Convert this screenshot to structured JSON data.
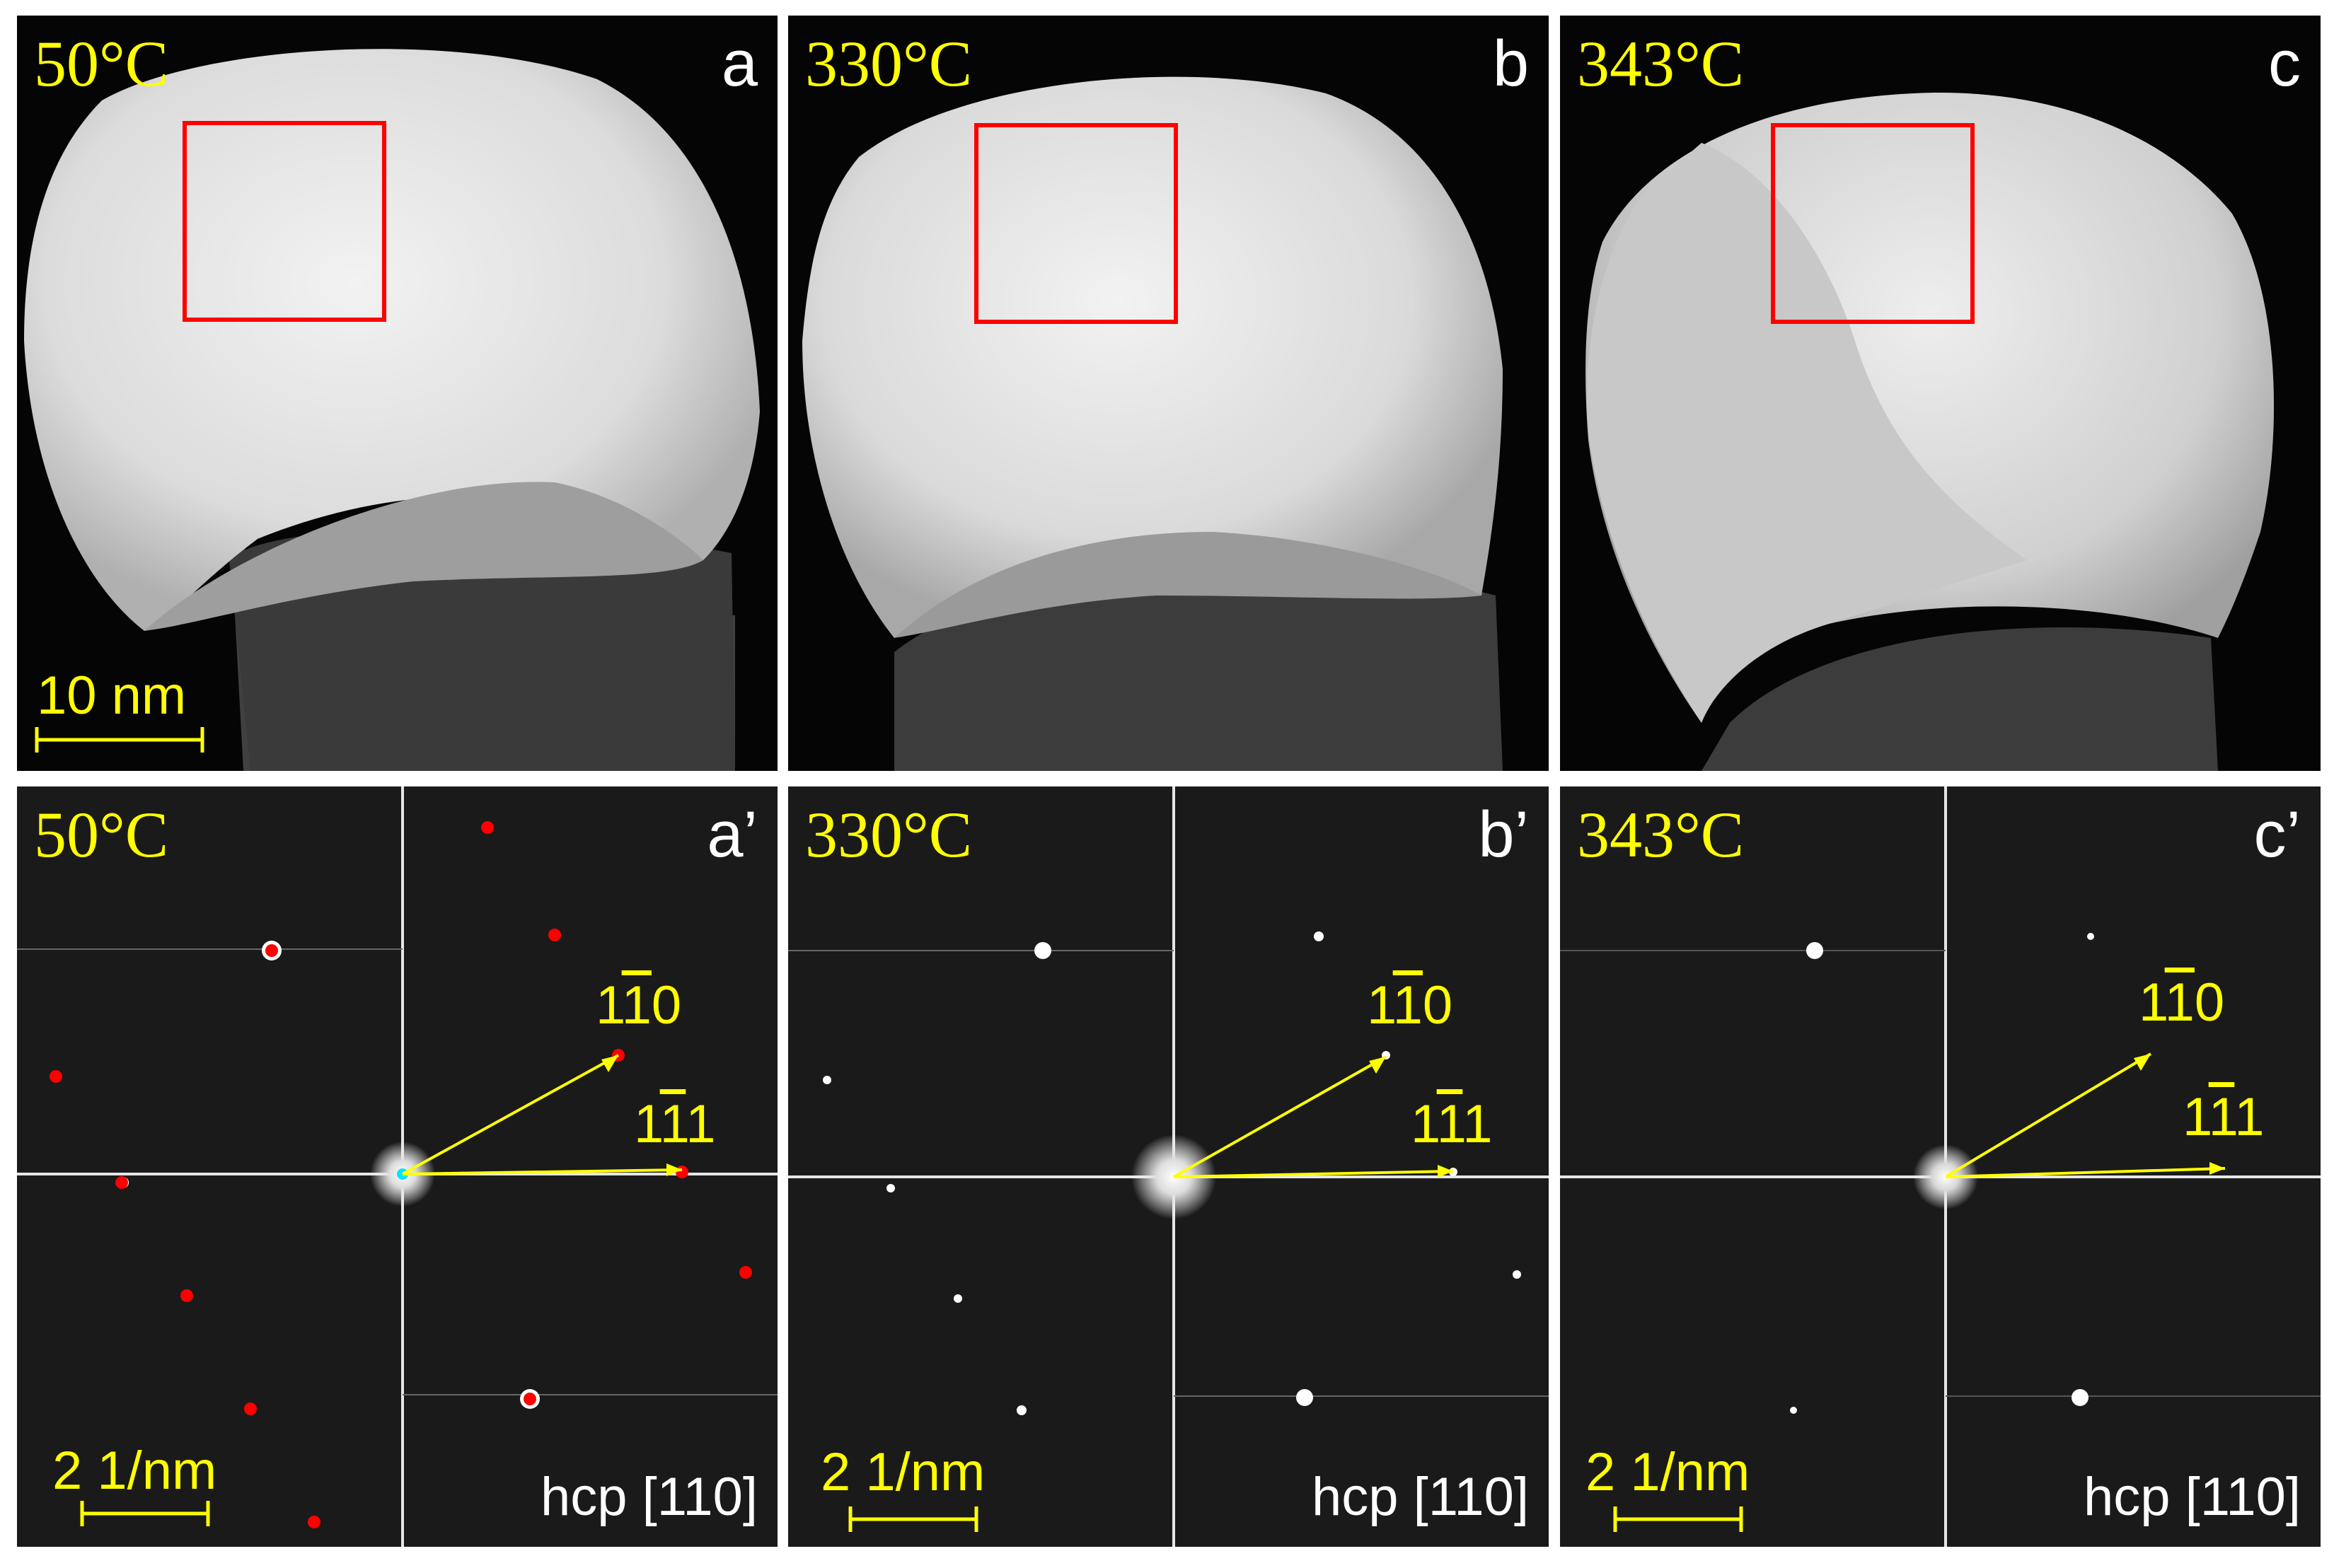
{
  "figure": {
    "top_row": [
      {
        "letter": "a",
        "temperature": "50°C",
        "scale_bar": "10 nm"
      },
      {
        "letter": "b",
        "temperature": "330°C"
      },
      {
        "letter": "c",
        "temperature": "343°C"
      }
    ],
    "bottom_row": [
      {
        "letter": "a’",
        "temperature": "50°C",
        "scale_bar": "2 1/nm",
        "zone_axis": "hcp [110]",
        "spot1": {
          "pre": "1",
          "bar": "1",
          "post": "0"
        },
        "spot2": {
          "pre": "1",
          "bar": "1",
          "post": "1"
        }
      },
      {
        "letter": "b’",
        "temperature": "330°C",
        "scale_bar": "2 1/nm",
        "zone_axis": "hcp [110]",
        "spot1": {
          "pre": "1",
          "bar": "1",
          "post": "0"
        },
        "spot2": {
          "pre": "1",
          "bar": "1",
          "post": "1"
        }
      },
      {
        "letter": "c’",
        "temperature": "343°C",
        "scale_bar": "2 1/nm",
        "zone_axis": "hcp [110]",
        "spot1": {
          "pre": "1",
          "bar": "1",
          "post": "0"
        },
        "spot2": {
          "pre": "1",
          "bar": "1",
          "post": "1"
        }
      }
    ],
    "colors": {
      "label": "#ffff00",
      "roi_box": "#ff0000",
      "marker": "#ff0000",
      "center": "#00e5ff"
    }
  }
}
